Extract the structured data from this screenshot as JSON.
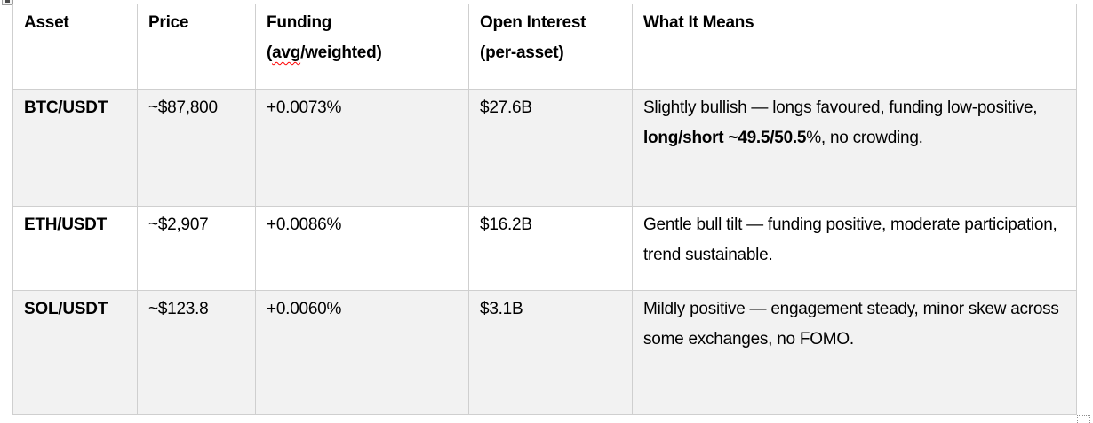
{
  "colors": {
    "row_shade": "#f2f2f2",
    "table_border": "#cfcfcf",
    "spellcheck_underline": "#ff0000",
    "text": "#000000",
    "background": "#ffffff"
  },
  "icons": {
    "table_move_handle": "table-move-handle-icon",
    "table_resize_handle": "table-resize-handle-icon"
  },
  "table": {
    "header": {
      "asset": "Asset",
      "price": "Price",
      "funding_line1": "Funding",
      "funding_line2_pre": "(",
      "funding_line2_misspelled": "avg",
      "funding_line2_post": "/weighted)",
      "open_interest_line1": "Open Interest",
      "open_interest_line2": "(per-asset)",
      "what_it_means": "What It Means"
    },
    "rows": [
      {
        "asset": "BTC/USDT",
        "price": "~$87,800",
        "funding": "+0.0073%",
        "open_interest": "$27.6B",
        "meaning_pre": "Slightly bullish — longs favoured, funding low-positive, ",
        "meaning_bold": "long/short ~49.5/50.5",
        "meaning_post": "%, no crowding."
      },
      {
        "asset": "ETH/USDT",
        "price": "~$2,907",
        "funding": "+0.0086%",
        "open_interest": "$16.2B",
        "meaning_pre": "Gentle bull tilt — funding positive, moderate participation, trend sustainable.",
        "meaning_bold": "",
        "meaning_post": ""
      },
      {
        "asset": "SOL/USDT",
        "price": "~$123.8",
        "funding": "+0.0060%",
        "open_interest": "$3.1B",
        "meaning_pre": "Mildly positive — engagement steady, minor skew across some exchanges, no FOMO.",
        "meaning_bold": "",
        "meaning_post": ""
      }
    ]
  }
}
